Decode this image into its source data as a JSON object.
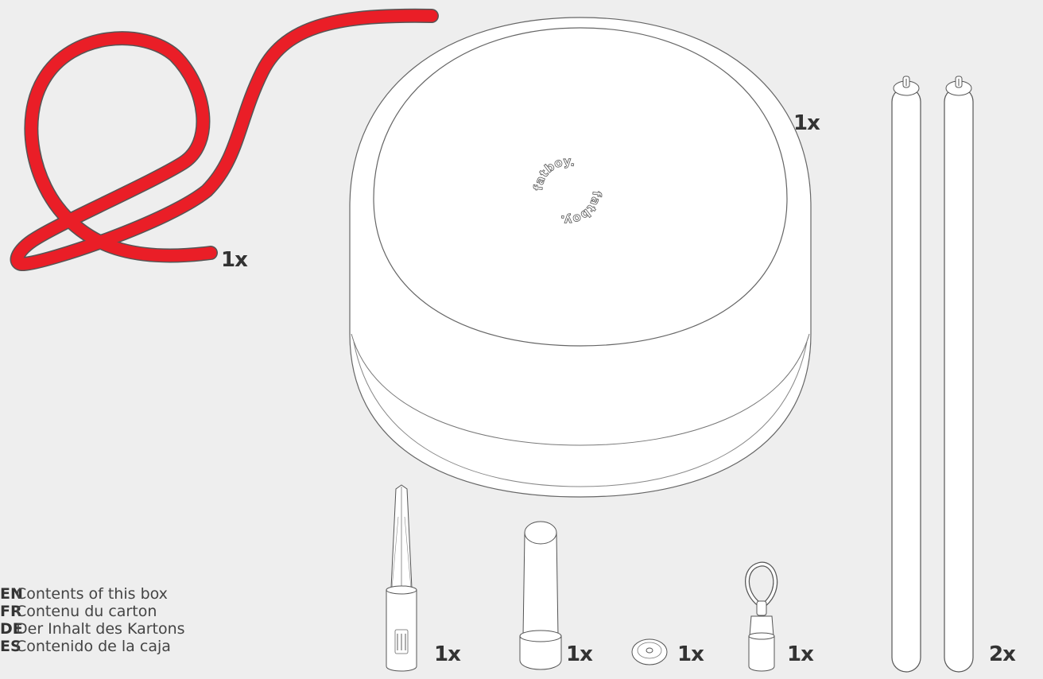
{
  "brand_mark": "fatboy.",
  "colors": {
    "background": "#eeeeee",
    "rope": "#ea1e27",
    "outline": "#555555"
  },
  "quantities": {
    "rope": "1x",
    "pouf": "1x",
    "poles": "2x",
    "spike": "1x",
    "cap": "1x",
    "washer": "1x",
    "hook": "1x"
  },
  "legend": [
    {
      "lang": "EN",
      "text": "Contents of this box"
    },
    {
      "lang": "FR",
      "text": "Contenu du carton"
    },
    {
      "lang": "DE",
      "text": "Der Inhalt des Kartons"
    },
    {
      "lang": "ES",
      "text": "Contenido de la caja"
    }
  ]
}
